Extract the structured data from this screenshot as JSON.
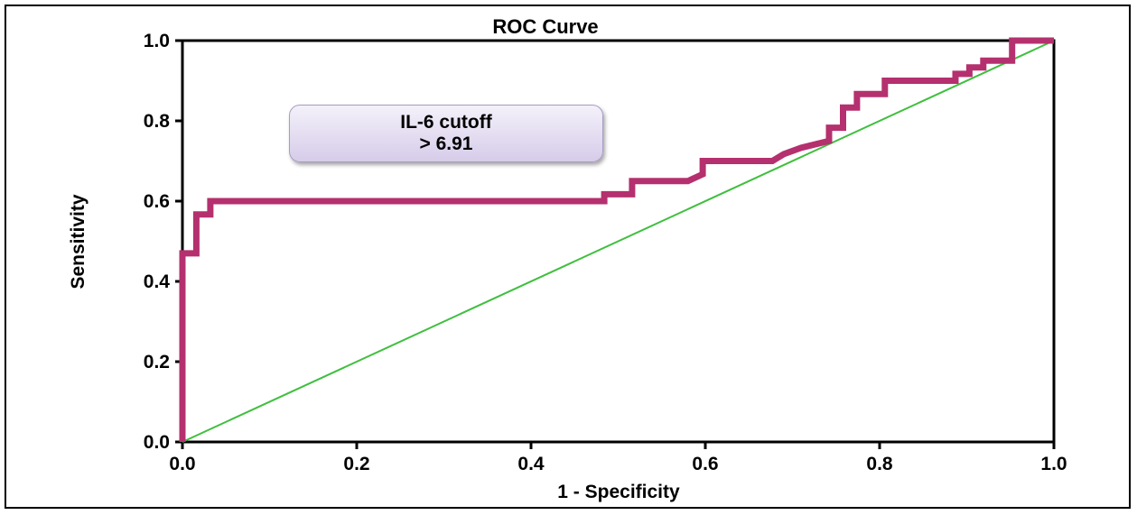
{
  "chart_data": {
    "type": "line",
    "title": "ROC Curve",
    "xlabel": "1 - Specificity",
    "ylabel": "Sensitivity",
    "xlim": [
      0,
      1
    ],
    "ylim": [
      0,
      1
    ],
    "x_ticks": [
      "0.0",
      "0.2",
      "0.4",
      "0.6",
      "0.8",
      "1.0"
    ],
    "y_ticks": [
      "0.0",
      "0.2",
      "0.4",
      "0.6",
      "0.8",
      "1.0"
    ],
    "grid": false,
    "series": [
      {
        "color": "#b5306f",
        "points": [
          [
            0.0,
            0.0
          ],
          [
            0.0,
            0.47
          ],
          [
            0.016,
            0.47
          ],
          [
            0.016,
            0.567
          ],
          [
            0.032,
            0.567
          ],
          [
            0.032,
            0.6
          ],
          [
            0.484,
            0.6
          ],
          [
            0.484,
            0.617
          ],
          [
            0.516,
            0.617
          ],
          [
            0.516,
            0.65
          ],
          [
            0.58,
            0.65
          ],
          [
            0.597,
            0.667
          ],
          [
            0.597,
            0.7
          ],
          [
            0.677,
            0.7
          ],
          [
            0.69,
            0.717
          ],
          [
            0.71,
            0.733
          ],
          [
            0.742,
            0.75
          ],
          [
            0.742,
            0.783
          ],
          [
            0.758,
            0.783
          ],
          [
            0.758,
            0.833
          ],
          [
            0.774,
            0.833
          ],
          [
            0.774,
            0.867
          ],
          [
            0.806,
            0.867
          ],
          [
            0.806,
            0.9
          ],
          [
            0.887,
            0.9
          ],
          [
            0.887,
            0.917
          ],
          [
            0.903,
            0.917
          ],
          [
            0.903,
            0.933
          ],
          [
            0.919,
            0.933
          ],
          [
            0.919,
            0.95
          ],
          [
            0.952,
            0.95
          ],
          [
            0.952,
            1.0
          ],
          [
            1.0,
            1.0
          ]
        ]
      },
      {
        "color": "#3fbf3f",
        "points": [
          [
            0,
            0
          ],
          [
            1,
            1
          ]
        ]
      }
    ],
    "annotations": [
      {
        "line1": "IL-6 cutoff",
        "line2": "> 6.91"
      }
    ]
  }
}
